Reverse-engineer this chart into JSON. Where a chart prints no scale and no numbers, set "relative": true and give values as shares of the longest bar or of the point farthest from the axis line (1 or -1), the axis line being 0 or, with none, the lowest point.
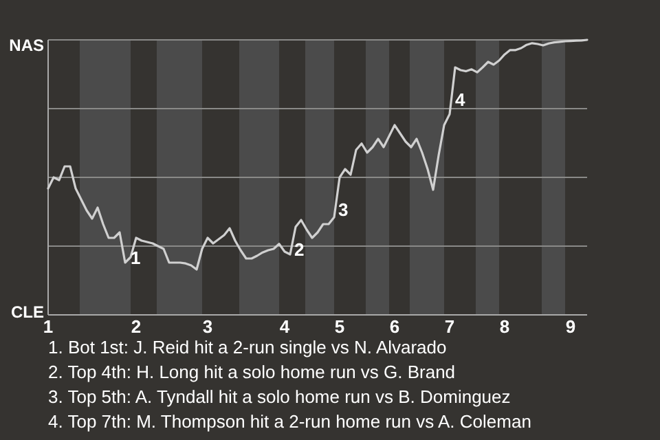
{
  "chart_data": {
    "type": "line",
    "relative": true,
    "categories": [
      "1",
      null,
      null,
      null,
      null,
      null,
      null,
      null,
      null,
      null,
      null,
      null,
      null,
      null,
      null,
      null,
      "2",
      null,
      null,
      null,
      null,
      null,
      null,
      null,
      null,
      null,
      null,
      null,
      null,
      "3",
      null,
      null,
      null,
      null,
      null,
      null,
      null,
      null,
      null,
      null,
      null,
      null,
      null,
      "4",
      null,
      null,
      null,
      null,
      null,
      null,
      null,
      null,
      null,
      "5",
      null,
      null,
      null,
      null,
      null,
      null,
      null,
      null,
      null,
      "6",
      null,
      null,
      null,
      null,
      null,
      null,
      null,
      null,
      null,
      "7",
      null,
      null,
      null,
      null,
      null,
      null,
      null,
      null,
      null,
      "8",
      null,
      null,
      null,
      null,
      null,
      null,
      null,
      null,
      null,
      null,
      null,
      "9",
      null,
      null,
      null
    ],
    "series": [
      {
        "color": "#d0d0d0",
        "values": [
          0.46,
          0.5,
          0.49,
          0.54,
          0.54,
          0.46,
          0.42,
          0.38,
          0.35,
          0.39,
          0.33,
          0.28,
          0.28,
          0.3,
          0.19,
          0.21,
          0.28,
          0.27,
          0.265,
          0.26,
          0.25,
          0.24,
          0.19,
          0.19,
          0.19,
          0.187,
          0.18,
          0.165,
          0.24,
          0.28,
          0.26,
          0.275,
          0.29,
          0.315,
          0.27,
          0.235,
          0.205,
          0.205,
          0.215,
          0.227,
          0.235,
          0.24,
          0.258,
          0.23,
          0.22,
          0.32,
          0.345,
          0.31,
          0.28,
          0.3,
          0.33,
          0.33,
          0.355,
          0.5,
          0.53,
          0.51,
          0.6,
          0.623,
          0.59,
          0.61,
          0.64,
          0.61,
          0.65,
          0.69,
          0.66,
          0.63,
          0.61,
          0.64,
          0.59,
          0.53,
          0.455,
          0.58,
          0.69,
          0.73,
          0.9,
          0.89,
          0.886,
          0.893,
          0.882,
          0.9,
          0.92,
          0.91,
          0.925,
          0.947,
          0.963,
          0.963,
          0.97,
          0.982,
          0.988,
          0.985,
          0.98,
          0.987,
          0.991,
          0.993,
          0.995,
          0.996,
          0.997,
          0.998,
          1
        ]
      }
    ],
    "grid": "y",
    "annotations": [
      "NAS",
      "CLE",
      "1",
      "2",
      "3",
      "4",
      "1. Bot 1st: J. Reid hit a 2-run single vs N. Alvarado",
      "2. Top 4th: H. Long hit a solo home run vs G. Brand",
      "3. Top 5th: A. Tyndall hit a solo home run vs B. Dominguez",
      "4. Top 7th: M. Thompson hit a 2-run home run vs A. Coleman"
    ]
  }
}
